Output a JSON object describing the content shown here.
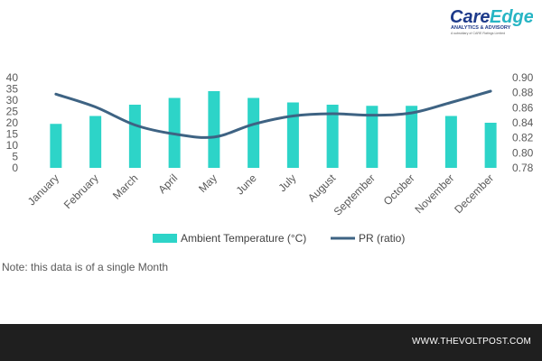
{
  "logo": {
    "care": "Care",
    "edge": "Edge",
    "tagline": "ANALYTICS & ADVISORY",
    "subtagline": "A subsidiary of CARE Ratings Limited"
  },
  "note": "Note: this data is of a single Month",
  "footer": {
    "site": "WWW.THEVOLTPOST.COM"
  },
  "colors": {
    "bar": "#2dd4c8",
    "line": "#3e6383",
    "logo_blue": "#1d3a8a",
    "logo_teal": "#27b5c4",
    "footer_bg": "#1f1f1f"
  },
  "chart_data": {
    "type": "bar+line",
    "categories": [
      "January",
      "February",
      "March",
      "April",
      "May",
      "June",
      "July",
      "August",
      "September",
      "October",
      "November",
      "December"
    ],
    "series": [
      {
        "name": "Ambient Temperature (°C)",
        "type": "bar",
        "axis": "left",
        "values": [
          19.5,
          23,
          28,
          31,
          34,
          31,
          29,
          28,
          27.5,
          27.5,
          23,
          20
        ]
      },
      {
        "name": "PR (ratio)",
        "type": "line",
        "axis": "right",
        "values": [
          0.878,
          0.861,
          0.837,
          0.825,
          0.821,
          0.838,
          0.849,
          0.852,
          0.85,
          0.853,
          0.867,
          0.882
        ]
      }
    ],
    "y_left": {
      "ylim": [
        0,
        40
      ],
      "ticks": [
        0,
        5,
        10,
        15,
        20,
        25,
        30,
        35,
        40
      ]
    },
    "y_right": {
      "ylim": [
        0.78,
        0.9
      ],
      "ticks": [
        "0.78",
        "0.80",
        "0.82",
        "0.84",
        "0.86",
        "0.88",
        "0.90"
      ]
    },
    "grid": false,
    "legend": "bottom"
  }
}
